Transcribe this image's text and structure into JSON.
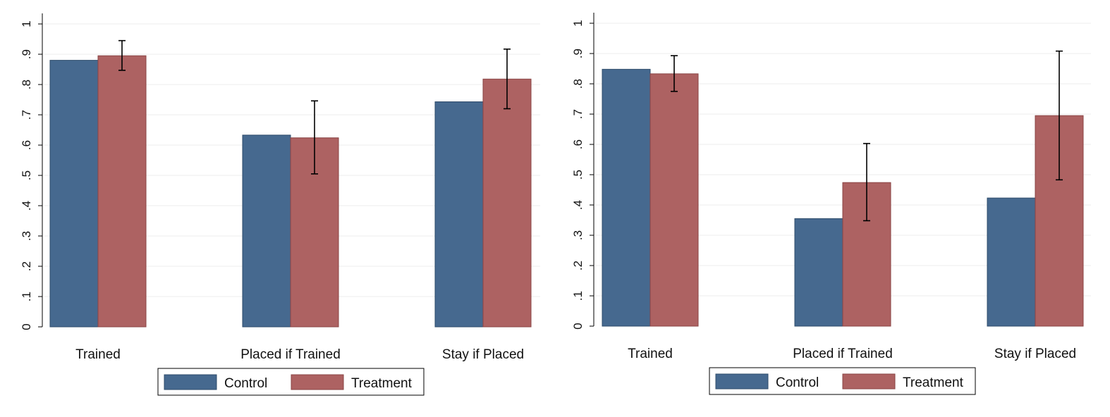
{
  "colors": {
    "control": "#46698F",
    "treatment": "#AD6262",
    "gridline": "#ECECEC",
    "axis": "#000000",
    "background": "#FFFFFF"
  },
  "chart_data": [
    {
      "type": "bar",
      "title": "",
      "xlabel": "",
      "ylabel": "",
      "ylim": [
        0,
        1
      ],
      "grid": true,
      "legend_position": "bottom-center",
      "categories": [
        "Trained",
        "Placed if Trained",
        "Stay if Placed"
      ],
      "y_ticks": [
        0,
        0.1,
        0.2,
        0.3,
        0.4,
        0.5,
        0.6,
        0.7,
        0.8,
        0.9,
        1
      ],
      "y_tick_labels": [
        "0",
        ".1",
        ".2",
        ".3",
        ".4",
        ".5",
        ".6",
        ".7",
        ".8",
        ".9",
        "1"
      ],
      "series": [
        {
          "name": "Control",
          "values": [
            0.88,
            0.633,
            0.743
          ]
        },
        {
          "name": "Treatment",
          "values": [
            0.895,
            0.624,
            0.818
          ],
          "error_low": [
            0.847,
            0.505,
            0.72
          ],
          "error_high": [
            0.945,
            0.746,
            0.917
          ]
        }
      ]
    },
    {
      "type": "bar",
      "title": "",
      "xlabel": "",
      "ylabel": "",
      "ylim": [
        0,
        1
      ],
      "grid": true,
      "legend_position": "bottom-center",
      "categories": [
        "Trained",
        "Placed if Trained",
        "Stay if Placed"
      ],
      "y_ticks": [
        0,
        0.1,
        0.2,
        0.3,
        0.4,
        0.5,
        0.6,
        0.7,
        0.8,
        0.9,
        1
      ],
      "y_tick_labels": [
        "0",
        ".1",
        ".2",
        ".3",
        ".4",
        ".5",
        ".6",
        ".7",
        ".8",
        ".9",
        "1"
      ],
      "series": [
        {
          "name": "Control",
          "values": [
            0.848,
            0.355,
            0.423
          ]
        },
        {
          "name": "Treatment",
          "values": [
            0.833,
            0.474,
            0.695
          ],
          "error_low": [
            0.775,
            0.348,
            0.483
          ],
          "error_high": [
            0.893,
            0.603,
            0.908
          ]
        }
      ]
    }
  ]
}
